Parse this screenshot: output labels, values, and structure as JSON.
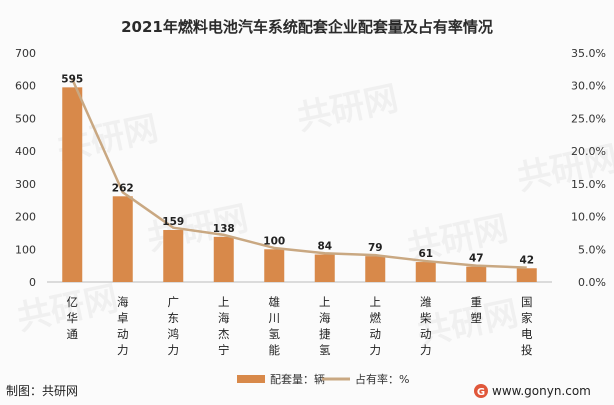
{
  "chart_data": {
    "type": "bar",
    "title": "2021年燃料电池汽车系统配套企业配套量及占有率情况",
    "categories": [
      "亿华通",
      "海卓动力",
      "广东鸿力",
      "上海杰宁",
      "雄川氢能",
      "上海捷氢",
      "上燃动力",
      "潍柴动力",
      "重塑",
      "国家电投"
    ],
    "series": [
      {
        "name": "配套量：辆",
        "type": "bar",
        "axis": "left",
        "values": [
          595,
          262,
          159,
          138,
          100,
          84,
          79,
          61,
          47,
          42
        ]
      },
      {
        "name": "占有率：%",
        "type": "line",
        "axis": "right",
        "values": [
          31.0,
          13.7,
          8.3,
          7.2,
          5.2,
          4.4,
          4.1,
          3.2,
          2.5,
          2.2
        ]
      }
    ],
    "ylim_left": [
      0,
      700
    ],
    "yticks_left": [
      "0",
      "100",
      "200",
      "300",
      "400",
      "500",
      "600",
      "700"
    ],
    "ylim_right": [
      0,
      35
    ],
    "yticks_right": [
      "0.0%",
      "5.0%",
      "10.0%",
      "15.0%",
      "20.0%",
      "25.0%",
      "30.0%",
      "35.0%"
    ],
    "grid": false,
    "legend_placement": "bottom-center",
    "colors": {
      "bar": "#d8894a",
      "line": "#c9a882",
      "axis": "#bbbbbb"
    }
  },
  "footer": {
    "credit": "制图：共研网",
    "website": "www.gonyn.com",
    "brand_color": "#e0573a"
  },
  "watermark": {
    "text": "共研网"
  }
}
